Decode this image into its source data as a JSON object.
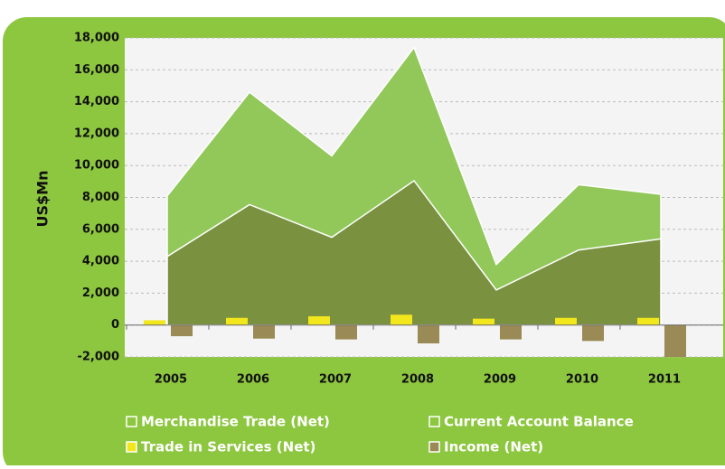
{
  "chart_data": {
    "type": "area-bar",
    "y_label": "US$Mn",
    "categories": [
      "2005",
      "2006",
      "2007",
      "2008",
      "2009",
      "2010",
      "2011"
    ],
    "series": [
      {
        "name": "Merchandise Trade (Net)",
        "color": "#7a9140",
        "kind": "area",
        "values": [
          4300,
          7550,
          5500,
          9050,
          2200,
          4700,
          5400
        ]
      },
      {
        "name": "Current Account Balance",
        "color": "#92c85a",
        "kind": "area",
        "values": [
          8100,
          14600,
          10600,
          17400,
          3800,
          8800,
          8200
        ]
      },
      {
        "name": "Trade in Services (Net)",
        "color": "#f2e61c",
        "kind": "bar",
        "values": [
          300,
          450,
          550,
          650,
          400,
          450,
          450
        ]
      },
      {
        "name": "Income (Net)",
        "color": "#9a8a55",
        "kind": "bar",
        "values": [
          -700,
          -850,
          -900,
          -1150,
          -900,
          -1000,
          -2000
        ]
      }
    ],
    "ylim": [
      -2000,
      18000
    ],
    "yticks": [
      {
        "value": -2000,
        "label": "-2,000"
      },
      0,
      {
        "value": 2000,
        "label": "2,000"
      },
      {
        "value": 4000,
        "label": "4,000"
      },
      {
        "value": 6000,
        "label": "6,000"
      },
      {
        "value": 8000,
        "label": "8,000"
      },
      {
        "value": 10000,
        "label": "10,000"
      },
      {
        "value": 12000,
        "label": "12,000"
      },
      {
        "value": 14000,
        "label": "14,000"
      },
      {
        "value": 16000,
        "label": "16,000"
      },
      {
        "value": 18000,
        "label": "18,000"
      }
    ],
    "grid": true
  }
}
